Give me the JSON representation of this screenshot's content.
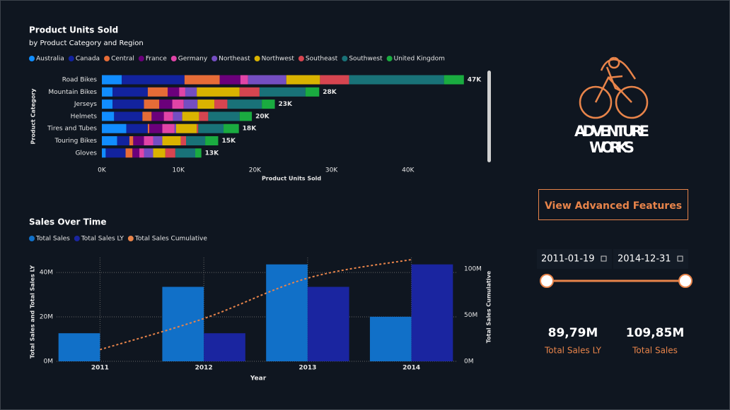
{
  "chart_data": [
    {
      "type": "bar",
      "orientation": "horizontal",
      "stacked": true,
      "title": "Product Units Sold",
      "subtitle": "by Product Category and Region",
      "x_label": "Product Units Sold",
      "y_label": "Product Category",
      "categories": [
        "Road Bikes",
        "Mountain Bikes",
        "Jerseys",
        "Helmets",
        "Tires and Tubes",
        "Touring Bikes",
        "Gloves"
      ],
      "series": [
        {
          "name": "Australia",
          "color": "#118DFF",
          "values": [
            2600,
            1400,
            1400,
            1600,
            3200,
            2000,
            500
          ]
        },
        {
          "name": "Canada",
          "color": "#12239E",
          "values": [
            8200,
            4600,
            4100,
            3700,
            2800,
            1600,
            2600
          ]
        },
        {
          "name": "Central",
          "color": "#E66C37",
          "values": [
            4600,
            2600,
            2000,
            1200,
            200,
            500,
            900
          ]
        },
        {
          "name": "France",
          "color": "#6B007B",
          "values": [
            2700,
            1500,
            1700,
            1600,
            1700,
            1400,
            900
          ]
        },
        {
          "name": "Germany",
          "color": "#E044A7",
          "values": [
            1000,
            800,
            1500,
            1200,
            1600,
            1200,
            600
          ]
        },
        {
          "name": "Northeast",
          "color": "#744EC2",
          "values": [
            5000,
            1500,
            1800,
            1200,
            200,
            1200,
            1200
          ]
        },
        {
          "name": "Northwest",
          "color": "#D9B300",
          "values": [
            4400,
            5600,
            2200,
            2200,
            2700,
            2400,
            1600
          ]
        },
        {
          "name": "Southeast",
          "color": "#D64550",
          "values": [
            3800,
            2600,
            1700,
            1200,
            200,
            700,
            1300
          ]
        },
        {
          "name": "Southwest",
          "color": "#197278",
          "values": [
            12400,
            6000,
            4500,
            4100,
            3300,
            2500,
            2600
          ]
        },
        {
          "name": "United Kingdom",
          "color": "#1AAB40",
          "values": [
            2600,
            1800,
            1700,
            1600,
            2000,
            1700,
            800
          ]
        }
      ],
      "totals": [
        47300,
        28400,
        22600,
        19600,
        17900,
        15200,
        13000
      ],
      "total_labels": [
        "47K",
        "28K",
        "23K",
        "20K",
        "18K",
        "15K",
        "13K"
      ],
      "xlim": [
        0,
        50000
      ],
      "xticks": [
        {
          "value": 0,
          "label": "0K"
        },
        {
          "value": 10000,
          "label": "10K"
        },
        {
          "value": 20000,
          "label": "20K"
        },
        {
          "value": 30000,
          "label": "30K"
        },
        {
          "value": 40000,
          "label": "40K"
        }
      ],
      "grid": false
    },
    {
      "type": "combo",
      "title": "Sales Over Time",
      "x_label": "Year",
      "y_label": "Total Sales and Total Sales LY",
      "y2_label": "Total Sales Cumulative",
      "categories": [
        "2011",
        "2012",
        "2013",
        "2014"
      ],
      "series": [
        {
          "name": "Total Sales",
          "mark": "bar",
          "color": "#1170C8",
          "values": [
            12.64,
            33.52,
            43.63,
            20.06
          ]
        },
        {
          "name": "Total Sales LY",
          "mark": "bar",
          "color": "#1A25A0",
          "values": [
            null,
            12.64,
            33.52,
            43.63
          ]
        },
        {
          "name": "Total Sales Cumulative",
          "mark": "line",
          "line_style": "dashed",
          "axis": "y2",
          "color": "#E8844A",
          "values": [
            12.64,
            46.16,
            89.79,
            109.85
          ]
        }
      ],
      "ylim": [
        0,
        46.7
      ],
      "yticks": [
        {
          "value": 0,
          "label": "0M"
        },
        {
          "value": 20,
          "label": "20M"
        },
        {
          "value": 40,
          "label": "40M"
        }
      ],
      "y2lim": [
        0,
        112
      ],
      "y2ticks": [
        {
          "value": 0,
          "label": "0M"
        },
        {
          "value": 50,
          "label": "50M"
        },
        {
          "value": 100,
          "label": "100M"
        }
      ],
      "grid": true
    }
  ],
  "panel": {
    "logo": [
      "ADVENTURE",
      "WORKS"
    ],
    "button": "View Advanced Features",
    "date_start": "2011-01-19",
    "date_end": "2014-12-31",
    "kpis": [
      {
        "value": "89,79M",
        "label": "Total Sales LY"
      },
      {
        "value": "109,85M",
        "label": "Total Sales"
      }
    ]
  }
}
